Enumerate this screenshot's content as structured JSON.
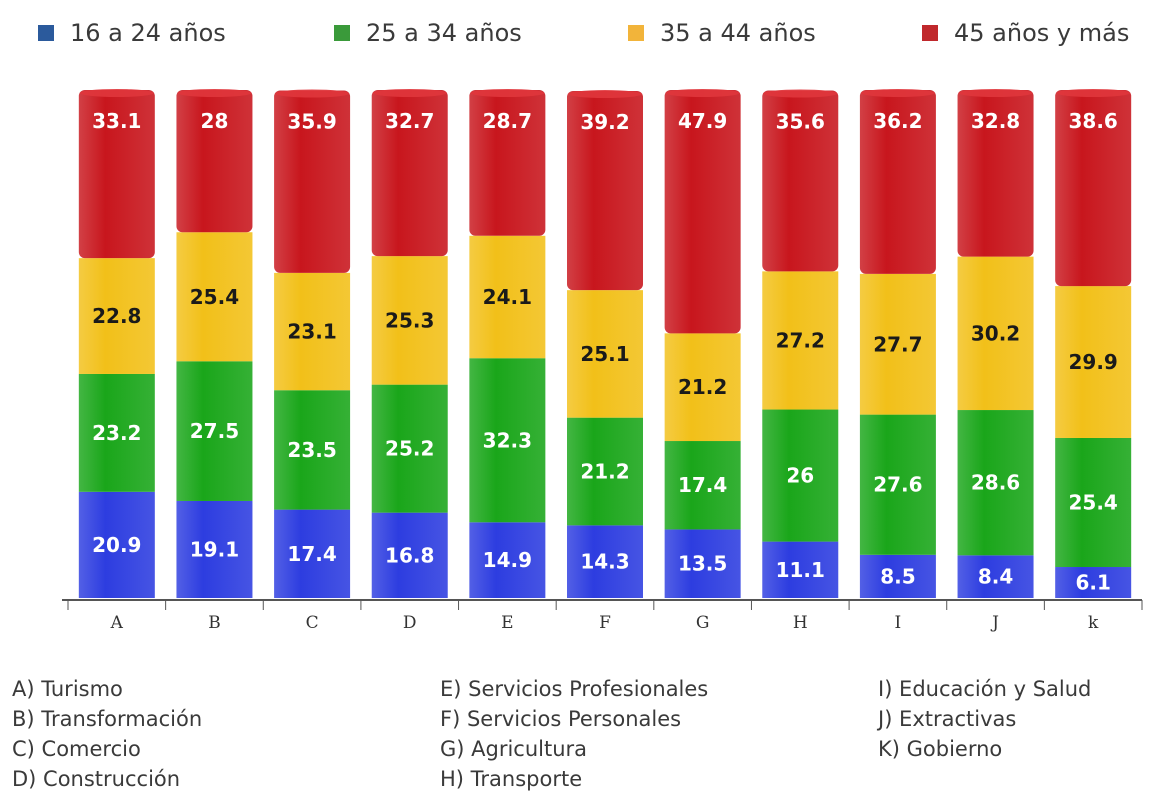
{
  "colors": {
    "series": [
      "#2d3de0",
      "#1aa61a",
      "#f2c019",
      "#c8161d"
    ],
    "legend_swatches": [
      "#2b5a9c",
      "#3a9a3a",
      "#f2b43a",
      "#c0282c"
    ],
    "label_light": "#ffffff",
    "label_dark": "#1a1a1a",
    "baseline": "#555555"
  },
  "legend": [
    {
      "label": "16 a 24 años"
    },
    {
      "label": "25 a 34 años"
    },
    {
      "label": "35 a 44 años"
    },
    {
      "label": "45 años y más"
    }
  ],
  "chart_data": {
    "type": "bar",
    "stacked": true,
    "categories": [
      "A",
      "B",
      "C",
      "D",
      "E",
      "F",
      "G",
      "H",
      "I",
      "J",
      "k"
    ],
    "series": [
      {
        "name": "16 a 24 años",
        "values": [
          20.9,
          19.1,
          17.4,
          16.8,
          14.9,
          14.3,
          13.5,
          11.1,
          8.5,
          8.4,
          6.1
        ]
      },
      {
        "name": "25 a 34 años",
        "values": [
          23.2,
          27.5,
          23.5,
          25.2,
          32.3,
          21.2,
          17.4,
          26,
          27.6,
          28.6,
          25.4
        ]
      },
      {
        "name": "35 a 44 años",
        "values": [
          22.8,
          25.4,
          23.1,
          25.3,
          24.1,
          25.1,
          21.2,
          27.2,
          27.7,
          30.2,
          29.9
        ]
      },
      {
        "name": "45 años y más",
        "values": [
          33.1,
          28,
          35.9,
          32.7,
          28.7,
          39.2,
          47.9,
          35.6,
          36.2,
          32.8,
          38.6
        ]
      }
    ],
    "ylim": [
      0,
      100
    ],
    "grid": false,
    "legend_position": "top"
  },
  "category_key": {
    "columns": [
      [
        "A) Turismo",
        "B) Transformación",
        "C)  Comercio",
        "D) Construcción"
      ],
      [
        "E) Servicios Profesionales",
        "F) Servicios Personales",
        "G)  Agricultura",
        "H) Transporte"
      ],
      [
        "I) Educación y Salud",
        "J) Extractivas",
        "K) Gobierno"
      ]
    ]
  }
}
